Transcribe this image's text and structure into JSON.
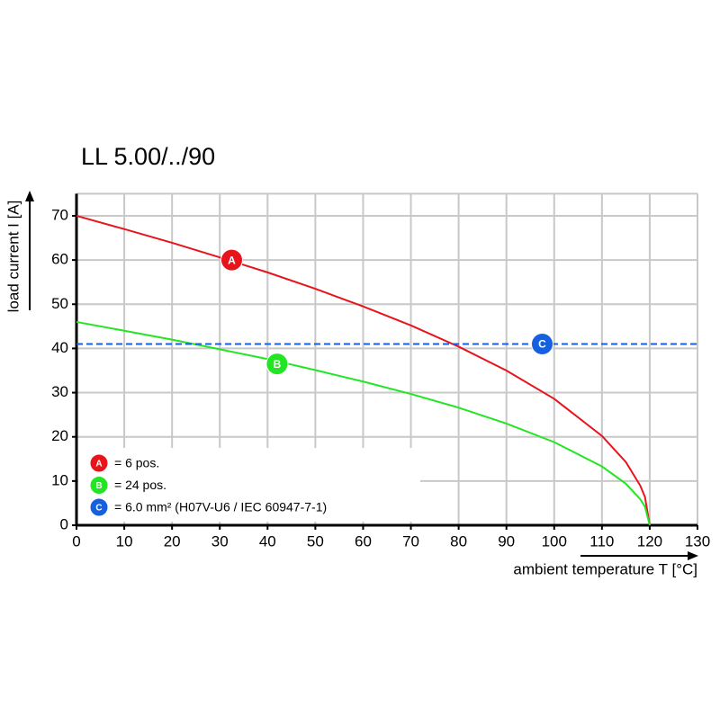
{
  "chart_data": {
    "type": "line",
    "title": "LL 5.00/../90",
    "x_label": "ambient temperature T [°C]",
    "y_label": "load current I [A]",
    "xlim": [
      0,
      130
    ],
    "ylim": [
      0,
      75
    ],
    "xticks": [
      0,
      10,
      20,
      30,
      40,
      50,
      60,
      70,
      80,
      90,
      100,
      110,
      120,
      130
    ],
    "yticks": [
      0,
      10,
      20,
      30,
      40,
      50,
      60,
      70
    ],
    "grid": true,
    "legend": "lower left",
    "series": [
      {
        "name": "= 6 pos.",
        "color": "#e8141b",
        "dashed": false,
        "x": [
          0,
          10,
          20,
          30,
          40,
          50,
          60,
          70,
          80,
          90,
          100,
          110,
          115,
          118,
          119,
          120
        ],
        "values": [
          70,
          67.0,
          63.9,
          60.6,
          57.2,
          53.5,
          49.5,
          45.2,
          40.4,
          35,
          28.6,
          20.2,
          14.3,
          9.0,
          6.4,
          0
        ],
        "marker": {
          "label": "A",
          "x": 32.5,
          "y": 60
        }
      },
      {
        "name": "= 24 pos.",
        "color": "#22e622",
        "dashed": false,
        "x": [
          0,
          10,
          20,
          30,
          40,
          50,
          60,
          70,
          80,
          90,
          100,
          110,
          115,
          118,
          119,
          120
        ],
        "values": [
          46,
          44.0,
          42.0,
          39.8,
          37.6,
          35.1,
          32.5,
          29.7,
          26.6,
          23,
          18.8,
          13.3,
          9.4,
          5.9,
          4.2,
          0
        ],
        "marker": {
          "label": "B",
          "x": 42,
          "y": 36.5
        }
      },
      {
        "name": "= 6.0 mm² (H07V-U6 / IEC 60947-7-1)",
        "color": "#1560e0",
        "dashed": true,
        "x": [
          0,
          130
        ],
        "values": [
          41,
          41
        ],
        "marker": {
          "label": "C",
          "x": 97.5,
          "y": 41
        }
      }
    ]
  }
}
